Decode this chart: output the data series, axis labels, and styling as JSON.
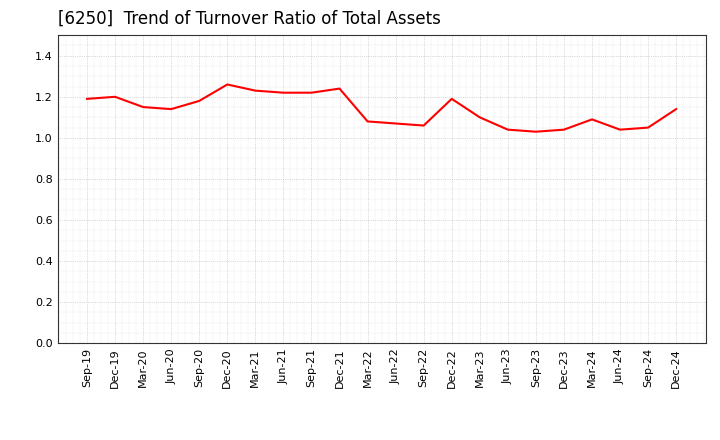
{
  "title": "[6250]  Trend of Turnover Ratio of Total Assets",
  "line_color": "#ff0000",
  "line_width": 1.5,
  "background_color": "#ffffff",
  "grid_color": "#999999",
  "ylim": [
    0.0,
    1.5
  ],
  "yticks": [
    0.0,
    0.2,
    0.4,
    0.6,
    0.8,
    1.0,
    1.2,
    1.4
  ],
  "labels": [
    "Sep-19",
    "Dec-19",
    "Mar-20",
    "Jun-20",
    "Sep-20",
    "Dec-20",
    "Mar-21",
    "Jun-21",
    "Sep-21",
    "Dec-21",
    "Mar-22",
    "Jun-22",
    "Sep-22",
    "Dec-22",
    "Mar-23",
    "Jun-23",
    "Sep-23",
    "Dec-23",
    "Mar-24",
    "Jun-24",
    "Sep-24",
    "Dec-24"
  ],
  "values": [
    1.19,
    1.2,
    1.15,
    1.14,
    1.18,
    1.26,
    1.23,
    1.22,
    1.22,
    1.24,
    1.08,
    1.07,
    1.06,
    1.19,
    1.1,
    1.04,
    1.03,
    1.04,
    1.09,
    1.04,
    1.05,
    1.14
  ],
  "title_fontsize": 12,
  "tick_fontsize": 8
}
